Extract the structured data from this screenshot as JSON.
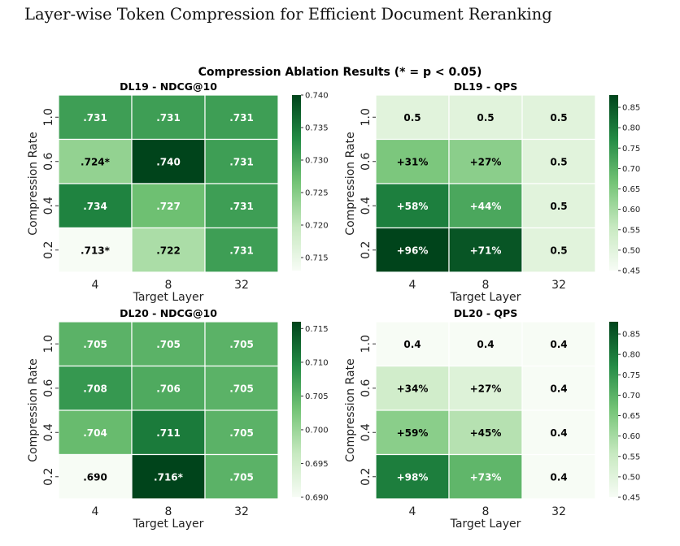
{
  "page": {
    "heading": "Layer-wise Token Compression for Efficient Document Reranking"
  },
  "figure": {
    "suptitle": "Compression Ablation Results (* = p < 0.05)"
  },
  "colors": {
    "cmap_low": "#f7fcf5",
    "cmap_mid1": "#c7e9c0",
    "cmap_mid2": "#74c476",
    "cmap_mid3": "#238b45",
    "cmap_high": "#00441b",
    "text_dark": "#000000",
    "text_light": "#ffffff"
  },
  "chart_data": [
    {
      "type": "heatmap",
      "title": "DL19 - NDCG@10",
      "xlabel": "Target Layer",
      "ylabel": "Compression Rate",
      "x_categories": [
        "4",
        "8",
        "32"
      ],
      "y_categories": [
        "1.0",
        "0.6",
        "0.4",
        "0.2"
      ],
      "values": [
        [
          0.731,
          0.731,
          0.731
        ],
        [
          0.724,
          0.74,
          0.731
        ],
        [
          0.734,
          0.727,
          0.731
        ],
        [
          0.713,
          0.722,
          0.731
        ]
      ],
      "labels": [
        [
          ".731",
          ".731",
          ".731"
        ],
        [
          ".724*",
          ".740",
          ".731"
        ],
        [
          ".734",
          ".727",
          ".731"
        ],
        [
          ".713*",
          ".722",
          ".731"
        ]
      ],
      "vmin": 0.713,
      "vmax": 0.74,
      "colorbar_ticks": [
        "0.715",
        "0.720",
        "0.725",
        "0.730",
        "0.735",
        "0.740"
      ],
      "colorbar_tick_values": [
        0.715,
        0.72,
        0.725,
        0.73,
        0.735,
        0.74
      ]
    },
    {
      "type": "heatmap",
      "title": "DL19 - QPS",
      "xlabel": "Target Layer",
      "ylabel": "Compression Rate",
      "x_categories": [
        "4",
        "8",
        "32"
      ],
      "y_categories": [
        "1.0",
        "0.6",
        "0.4",
        "0.2"
      ],
      "values": [
        [
          0.5,
          0.5,
          0.5
        ],
        [
          0.655,
          0.635,
          0.5
        ],
        [
          0.79,
          0.72,
          0.5
        ],
        [
          0.98,
          0.855,
          0.5
        ]
      ],
      "labels": [
        [
          "0.5",
          "0.5",
          "0.5"
        ],
        [
          "+31%",
          "+27%",
          "0.5"
        ],
        [
          "+58%",
          "+44%",
          "0.5"
        ],
        [
          "+96%",
          "+71%",
          "0.5"
        ]
      ],
      "vmin": 0.45,
      "vmax": 0.88,
      "colorbar_ticks": [
        "0.45",
        "0.50",
        "0.55",
        "0.60",
        "0.65",
        "0.70",
        "0.75",
        "0.80",
        "0.85"
      ],
      "colorbar_tick_values": [
        0.45,
        0.5,
        0.55,
        0.6,
        0.65,
        0.7,
        0.75,
        0.8,
        0.85
      ]
    },
    {
      "type": "heatmap",
      "title": "DL20 - NDCG@10",
      "xlabel": "Target Layer",
      "ylabel": "Compression Rate",
      "x_categories": [
        "4",
        "8",
        "32"
      ],
      "y_categories": [
        "1.0",
        "0.6",
        "0.4",
        "0.2"
      ],
      "values": [
        [
          0.705,
          0.705,
          0.705
        ],
        [
          0.708,
          0.706,
          0.705
        ],
        [
          0.704,
          0.711,
          0.705
        ],
        [
          0.69,
          0.716,
          0.705
        ]
      ],
      "labels": [
        [
          ".705",
          ".705",
          ".705"
        ],
        [
          ".708",
          ".706",
          ".705"
        ],
        [
          ".704",
          ".711",
          ".705"
        ],
        [
          ".690",
          ".716*",
          ".705"
        ]
      ],
      "vmin": 0.69,
      "vmax": 0.716,
      "colorbar_ticks": [
        "0.690",
        "0.695",
        "0.700",
        "0.705",
        "0.710",
        "0.715"
      ],
      "colorbar_tick_values": [
        0.69,
        0.695,
        0.7,
        0.705,
        0.71,
        0.715
      ]
    },
    {
      "type": "heatmap",
      "title": "DL20 - QPS",
      "xlabel": "Target Layer",
      "ylabel": "Compression Rate",
      "x_categories": [
        "4",
        "8",
        "32"
      ],
      "y_categories": [
        "1.0",
        "0.6",
        "0.4",
        "0.2"
      ],
      "values": [
        [
          0.4,
          0.4,
          0.4
        ],
        [
          0.536,
          0.508,
          0.4
        ],
        [
          0.636,
          0.58,
          0.4
        ],
        [
          0.792,
          0.692,
          0.4
        ]
      ],
      "labels": [
        [
          "0.4",
          "0.4",
          "0.4"
        ],
        [
          "+34%",
          "+27%",
          "0.4"
        ],
        [
          "+59%",
          "+45%",
          "0.4"
        ],
        [
          "+98%",
          "+73%",
          "0.4"
        ]
      ],
      "vmin": 0.45,
      "vmax": 0.88,
      "colorbar_ticks": [
        "0.45",
        "0.50",
        "0.55",
        "0.60",
        "0.65",
        "0.70",
        "0.75",
        "0.80",
        "0.85"
      ],
      "colorbar_tick_values": [
        0.45,
        0.5,
        0.55,
        0.6,
        0.65,
        0.7,
        0.75,
        0.8,
        0.85
      ]
    }
  ]
}
